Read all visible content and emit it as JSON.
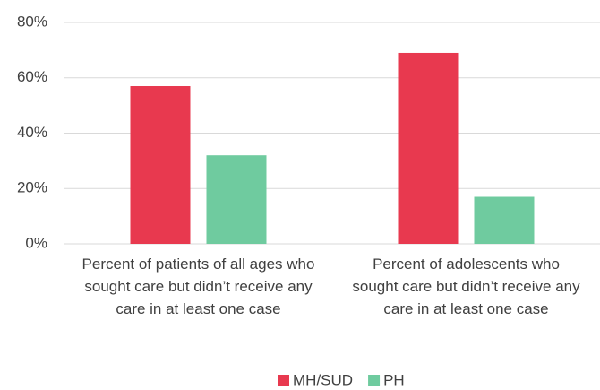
{
  "chart_data": {
    "type": "bar",
    "categories": [
      "Percent of patients of all ages who sought care but didn’t receive any care in at least one case",
      "Percent of adolescents who sought care but didn’t receive any care in at least one case"
    ],
    "series": [
      {
        "name": "MH/SUD",
        "color": "#e8394f",
        "values": [
          57,
          69
        ]
      },
      {
        "name": "PH",
        "color": "#6fcb9f",
        "values": [
          32,
          17
        ]
      }
    ],
    "ylim": [
      0,
      80
    ],
    "yticks": [
      {
        "value": 0,
        "label": "0%"
      },
      {
        "value": 20,
        "label": "20%"
      },
      {
        "value": 40,
        "label": "40%"
      },
      {
        "value": 60,
        "label": "60%"
      },
      {
        "value": 80,
        "label": "80%"
      }
    ],
    "grid": true,
    "legend": "bottom"
  }
}
